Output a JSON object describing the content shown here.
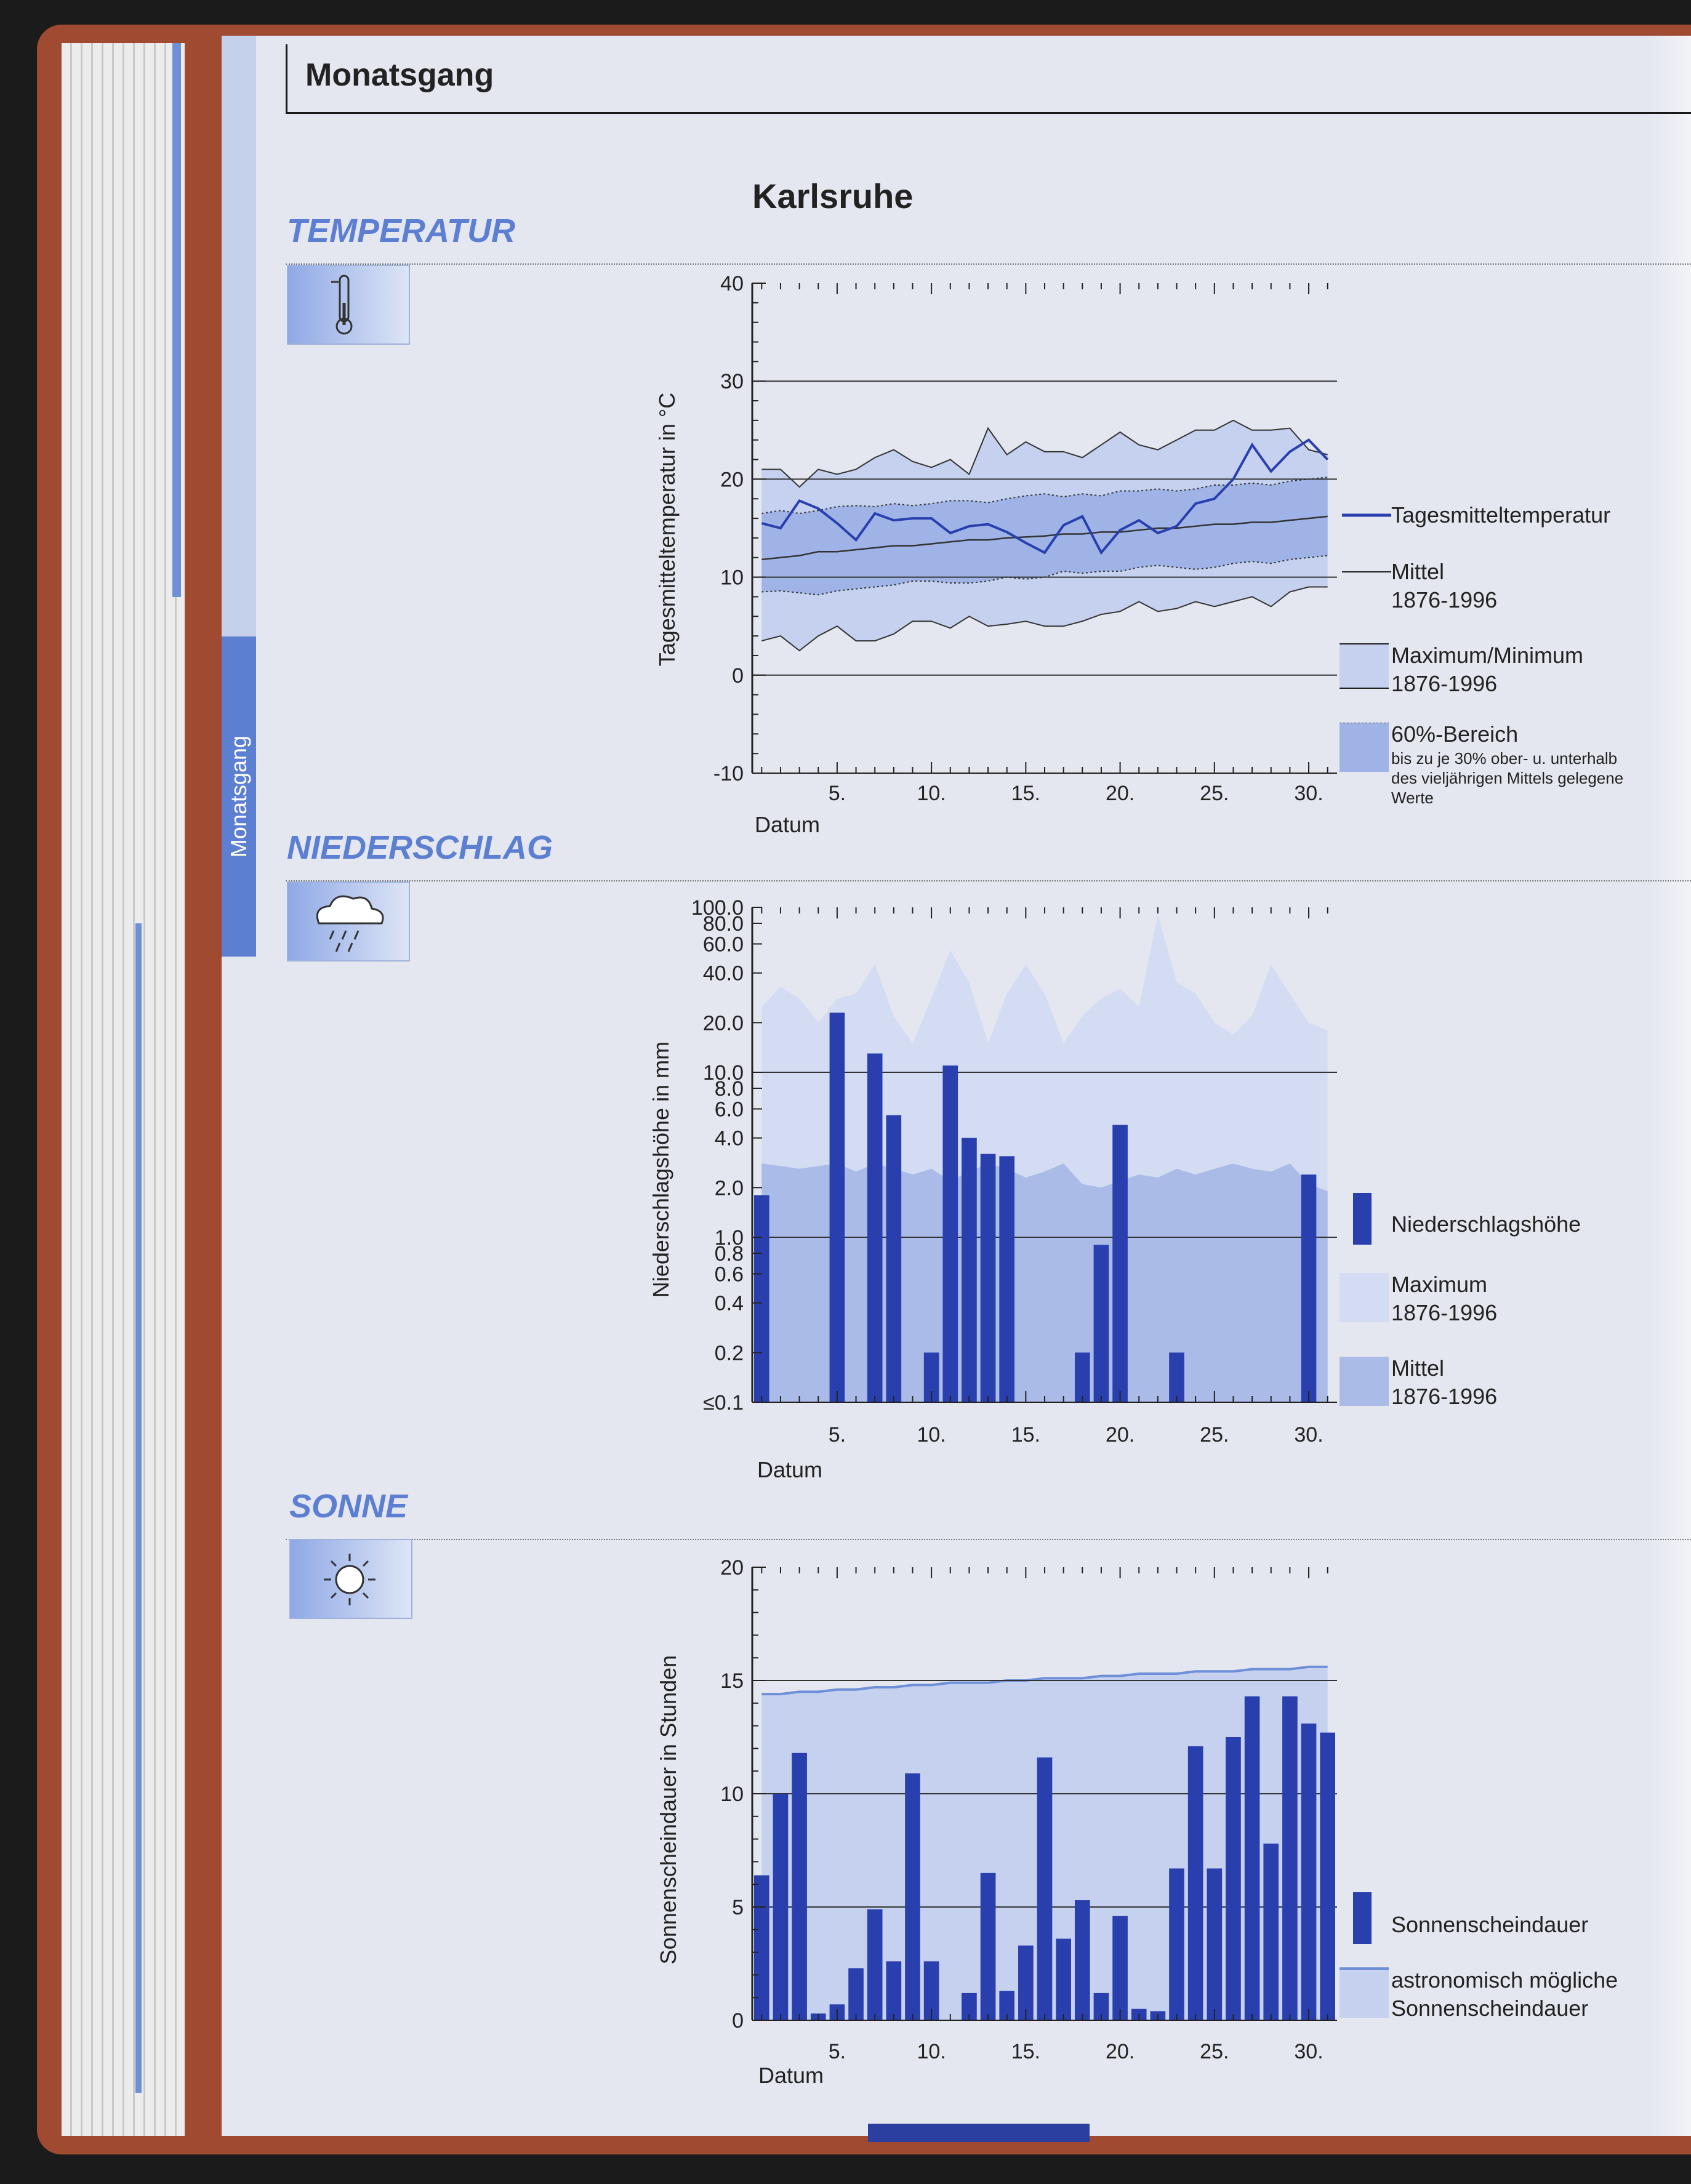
{
  "header": {
    "title": "Monatsgang"
  },
  "station": "Karlsruhe",
  "side_tab": "Monatsgang",
  "sections": {
    "temperature": "TEMPERATUR",
    "precipitation": "NIEDERSCHLAG",
    "sun": "SONNE"
  },
  "colors": {
    "accent": "#5d7fd2",
    "series_dark": "#2a3fae",
    "band_light": "#c5d1ee",
    "band_mid": "#9fb3e6"
  },
  "icons": {
    "temperature": "thermometer-icon",
    "precipitation": "rain-cloud-icon",
    "sun": "sun-icon"
  },
  "chart_data": [
    {
      "type": "line",
      "x": [
        1,
        2,
        3,
        4,
        5,
        6,
        7,
        8,
        9,
        10,
        11,
        12,
        13,
        14,
        15,
        16,
        17,
        18,
        19,
        20,
        21,
        22,
        23,
        24,
        25,
        26,
        27,
        28,
        29,
        30,
        31
      ],
      "xlabel": "Datum",
      "ylabel": "Tagesmitteltemperatur in °C",
      "xticks": [
        "5.",
        "10.",
        "15.",
        "20.",
        "25.",
        "30."
      ],
      "yticks": [
        "40",
        "30",
        "20",
        "10",
        "0",
        "-10"
      ],
      "ylim": [
        -10,
        40
      ],
      "grid": "horizontal at 30, 20, 10, 0",
      "series": [
        {
          "name": "Tagesmitteltemperatur",
          "values": [
            15.5,
            15,
            17.8,
            17,
            15.5,
            13.8,
            16.5,
            15.8,
            16,
            16,
            14.5,
            15.2,
            15.4,
            14.6,
            13.5,
            12.5,
            15.3,
            16.2,
            12.5,
            14.8,
            15.8,
            14.5,
            15.2,
            17.5,
            18,
            20,
            23.5,
            20.8,
            22.8,
            24,
            22
          ]
        },
        {
          "name": "Mittel 1876-1996",
          "values": [
            11.8,
            12,
            12.2,
            12.6,
            12.6,
            12.8,
            13,
            13.2,
            13.2,
            13.4,
            13.6,
            13.8,
            13.8,
            14,
            14.1,
            14.2,
            14.4,
            14.4,
            14.6,
            14.6,
            14.8,
            15,
            15,
            15.2,
            15.4,
            15.4,
            15.6,
            15.6,
            15.8,
            16,
            16.2
          ]
        },
        {
          "name": "Maximum 1876-1996",
          "values": [
            21,
            21,
            19.2,
            21,
            20.5,
            21,
            22.2,
            23,
            21.8,
            21.2,
            22,
            20.5,
            25.2,
            22.5,
            23.8,
            22.8,
            22.8,
            22.2,
            23.5,
            24.8,
            23.5,
            23,
            24,
            25,
            25,
            26,
            25,
            25,
            25.2,
            23,
            22.5
          ]
        },
        {
          "name": "Minimum 1876-1996",
          "values": [
            3.5,
            4,
            2.5,
            4,
            5,
            3.5,
            3.5,
            4.2,
            5.5,
            5.5,
            4.8,
            6,
            5,
            5.2,
            5.5,
            5,
            5,
            5.5,
            6.2,
            6.5,
            7.5,
            6.5,
            6.8,
            7.5,
            7,
            7.5,
            8,
            7,
            8.5,
            9,
            9
          ]
        },
        {
          "name": "60%-Bereich oben",
          "values": [
            16.5,
            16.8,
            16.5,
            16.8,
            17.2,
            17.3,
            17.2,
            17.5,
            17.3,
            17.5,
            17.8,
            17.8,
            17.6,
            18,
            18.3,
            18.5,
            18.2,
            18.5,
            18.3,
            18.8,
            18.8,
            19,
            18.8,
            19,
            19.4,
            19.4,
            19.6,
            19.4,
            19.8,
            20,
            20.2
          ]
        },
        {
          "name": "60%-Bereich unten",
          "values": [
            8.5,
            8.6,
            8.4,
            8.2,
            8.6,
            8.8,
            9,
            9.2,
            9.6,
            9.6,
            9.4,
            9.4,
            9.6,
            10,
            9.8,
            10,
            10.6,
            10.4,
            10.6,
            10.6,
            11,
            11.2,
            11,
            10.8,
            11,
            11.4,
            11.6,
            11.4,
            11.8,
            12,
            12.2
          ]
        }
      ],
      "legend": [
        {
          "label": "Tagesmitteltemperatur",
          "sub": ""
        },
        {
          "label": "Mittel",
          "sub": "1876-1996"
        },
        {
          "label": "Maximum/Minimum",
          "sub": "1876-1996"
        },
        {
          "label": "60%-Bereich",
          "sub": "1876-1996",
          "note": [
            "bis zu je 30% ober- u. unterhalb",
            "des vieljährigen Mittels gelegene",
            "Werte"
          ]
        }
      ],
      "legend_placement": "right"
    },
    {
      "type": "bar",
      "x": [
        1,
        2,
        3,
        4,
        5,
        6,
        7,
        8,
        9,
        10,
        11,
        12,
        13,
        14,
        15,
        16,
        17,
        18,
        19,
        20,
        21,
        22,
        23,
        24,
        25,
        26,
        27,
        28,
        29,
        30,
        31
      ],
      "xlabel": "Datum",
      "ylabel": "Niederschlagshöhe in mm",
      "scale": "log",
      "xticks": [
        "5.",
        "10.",
        "15.",
        "20.",
        "25.",
        "30."
      ],
      "yticks": [
        "100.0",
        "80.0",
        "60.0",
        "40.0",
        "20.0",
        "10.0",
        "8.0",
        "6.0",
        "4.0",
        "2.0",
        "1.0",
        "0.8",
        "0.6",
        "0.4",
        "0.2",
        "≤0.1"
      ],
      "ylim": [
        0.1,
        100
      ],
      "grid": "horizontal at 10.0 and 1.0",
      "series": [
        {
          "name": "Niederschlagshöhe",
          "values": [
            1.8,
            0.1,
            0.1,
            0.1,
            23,
            0.1,
            13,
            5.5,
            0.1,
            0.2,
            11,
            4,
            3.2,
            3.1,
            0.1,
            0.1,
            0.1,
            0.2,
            0.9,
            4.8,
            0.1,
            0.1,
            0.2,
            0.1,
            0.1,
            0.1,
            0.1,
            0.1,
            0.1,
            2.4,
            0.1
          ]
        },
        {
          "name": "Maximum 1876-1996",
          "values": [
            25,
            33,
            28,
            20,
            28,
            30,
            45,
            22,
            15,
            28,
            55,
            35,
            15,
            30,
            45,
            30,
            15,
            22,
            28,
            32,
            25,
            90,
            35,
            30,
            20,
            17,
            22,
            45,
            30,
            20,
            18
          ]
        },
        {
          "name": "Mittel 1876-1996",
          "values": [
            2.8,
            2.7,
            2.6,
            2.7,
            2.8,
            2.5,
            2.8,
            2.6,
            2.4,
            2.6,
            2.2,
            2.5,
            2.8,
            2.6,
            2.3,
            2.5,
            2.8,
            2.1,
            2.0,
            2.2,
            2.4,
            2.3,
            2.6,
            2.4,
            2.6,
            2.8,
            2.6,
            2.5,
            2.8,
            2.1,
            1.9
          ]
        }
      ],
      "legend": [
        {
          "label": "Niederschlagshöhe",
          "sub": ""
        },
        {
          "label": "Maximum",
          "sub": "1876-1996"
        },
        {
          "label": "Mittel",
          "sub": "1876-1996"
        }
      ],
      "legend_placement": "right"
    },
    {
      "type": "bar",
      "x": [
        1,
        2,
        3,
        4,
        5,
        6,
        7,
        8,
        9,
        10,
        11,
        12,
        13,
        14,
        15,
        16,
        17,
        18,
        19,
        20,
        21,
        22,
        23,
        24,
        25,
        26,
        27,
        28,
        29,
        30,
        31
      ],
      "xlabel": "Datum",
      "ylabel": "Sonnenscheindauer in Stunden",
      "xticks": [
        "5.",
        "10.",
        "15.",
        "20.",
        "25.",
        "30."
      ],
      "yticks": [
        "20",
        "15",
        "10",
        "5",
        "0"
      ],
      "ylim": [
        0,
        20
      ],
      "grid": "horizontal at 15, 10, 5",
      "series": [
        {
          "name": "Sonnenscheindauer",
          "values": [
            6.4,
            10,
            11.8,
            0.3,
            0.7,
            2.3,
            4.9,
            2.6,
            10.9,
            2.6,
            0,
            1.2,
            6.5,
            1.3,
            3.3,
            11.6,
            3.6,
            5.3,
            1.2,
            4.6,
            0.5,
            0.4,
            6.7,
            12.1,
            6.7,
            12.5,
            14.3,
            7.8,
            14.3,
            13.1,
            12.7
          ]
        },
        {
          "name": "astronomisch mögliche Sonnenscheindauer",
          "values": [
            14.4,
            14.4,
            14.5,
            14.5,
            14.6,
            14.6,
            14.7,
            14.7,
            14.8,
            14.8,
            14.9,
            14.9,
            14.9,
            15,
            15,
            15.1,
            15.1,
            15.1,
            15.2,
            15.2,
            15.3,
            15.3,
            15.3,
            15.4,
            15.4,
            15.4,
            15.5,
            15.5,
            15.5,
            15.6,
            15.6
          ]
        }
      ],
      "legend": [
        {
          "label": "Sonnenscheindauer",
          "sub": ""
        },
        {
          "label": "astronomisch mögliche",
          "sub": "Sonnenscheindauer"
        }
      ],
      "legend_placement": "right"
    }
  ]
}
